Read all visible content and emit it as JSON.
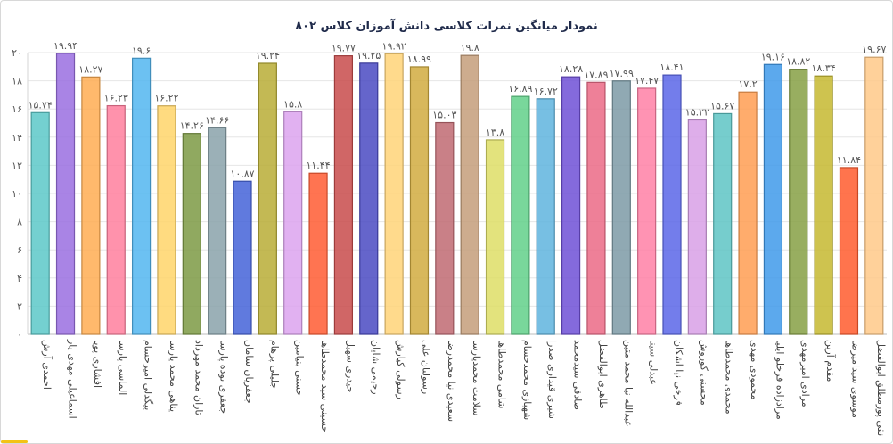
{
  "chart_data": {
    "type": "bar",
    "title": "نمودار میانگین نمرات کلاسی دانش آموزان کلاس ۸۰۲",
    "xlabel": "",
    "ylabel": "",
    "ylim": [
      0,
      20
    ],
    "yticks": [
      "۰",
      "۲",
      "۴",
      "۶",
      "۸",
      "۱۰",
      "۱۲",
      "۱۴",
      "۱۶",
      "۱۸",
      "۲۰"
    ],
    "grid": true,
    "legend": "none",
    "categories": [
      "احمدی آرش",
      "اسماعیلی مهدی یار",
      "افشاری پویا",
      "الماسی پارسا",
      "بیگدلی امیرحسام",
      "پناهی محمد پارسا",
      "تاران محمد مهرداد",
      "جعفری نوده پارسا",
      "جعفریان سامان",
      "جلیلی پرهام",
      "حسنی بنیامین",
      "حسینی سید محمدطاها",
      "حیدری سهیل",
      "رحیمی شایان",
      "رسولی کیارش",
      "رسولیان علی",
      "سعیدی نیا محمدرضا",
      "سلامت محمدپارسا",
      "شامی محمدطاها",
      "شهبازی محمدحسام",
      "شیری قیداری صدرا",
      "صادقی سیدمحمد",
      "طاهری ابوالفضل",
      "عبدالله نیا محمد متین",
      "عبدلی سینا",
      "فرخی نیا اشکان",
      "محسنی کوروش",
      "محمدی محمدطاها",
      "محمودی مهدی",
      "مرادزاده فرخلو ایلیا",
      "مرادی امیرمهدی",
      "مقدم آرین",
      "موسوی سیدامیرضا",
      "نقی پورمطلق ابوالفضل"
    ],
    "values": [
      15.74,
      19.94,
      18.27,
      16.23,
      19.6,
      16.22,
      14.26,
      14.66,
      10.87,
      19.24,
      15.8,
      11.44,
      19.77,
      19.25,
      19.92,
      18.99,
      15.03,
      19.8,
      13.8,
      16.89,
      16.72,
      18.28,
      17.89,
      17.99,
      17.47,
      18.41,
      15.22,
      15.67,
      17.2,
      19.16,
      18.82,
      18.34,
      11.84,
      19.67
    ],
    "value_labels": [
      "۱۵.۷۴",
      "۱۹.۹۴",
      "۱۸.۲۷",
      "۱۶.۲۳",
      "۱۹.۶",
      "۱۶.۲۲",
      "۱۴.۲۶",
      "۱۴.۶۶",
      "۱۰.۸۷",
      "۱۹.۲۴",
      "۱۵.۸",
      "۱۱.۴۴",
      "۱۹.۷۷",
      "۱۹.۲۵",
      "۱۹.۹۲",
      "۱۸.۹۹",
      "۱۵.۰۳",
      "۱۹.۸",
      "۱۳.۸",
      "۱۶.۸۹",
      "۱۶.۷۲",
      "۱۸.۲۸",
      "۱۷.۸۹",
      "۱۷.۹۹",
      "۱۷.۴۷",
      "۱۸.۴۱",
      "۱۵.۲۲",
      "۱۵.۶۷",
      "۱۷.۲",
      "۱۹.۱۶",
      "۱۸.۸۲",
      "۱۸.۳۴",
      "۱۱.۸۴",
      "۱۹.۶۷"
    ],
    "colors": [
      "#5cc8c8",
      "#9a6fe0",
      "#ffad52",
      "#ff7f9e",
      "#52b6f0",
      "#ffd56a",
      "#7d9a44",
      "#8aa2aa",
      "#4463d8",
      "#b8ad36",
      "#dca3ee",
      "#ff5c33",
      "#c84b4b",
      "#4a4ac2",
      "#ffd478",
      "#d1ac40",
      "#c06a72",
      "#c49e7a",
      "#dede66",
      "#62d08a",
      "#5fb4de",
      "#6f50d6",
      "#eb6a86",
      "#7c9aa6",
      "#ff80a6",
      "#5a66e8",
      "#d8a0e6",
      "#5ec4c4",
      "#ff9e52",
      "#3f9aea",
      "#86a044",
      "#c6b830",
      "#ff5c2e",
      "#ffc988"
    ]
  }
}
